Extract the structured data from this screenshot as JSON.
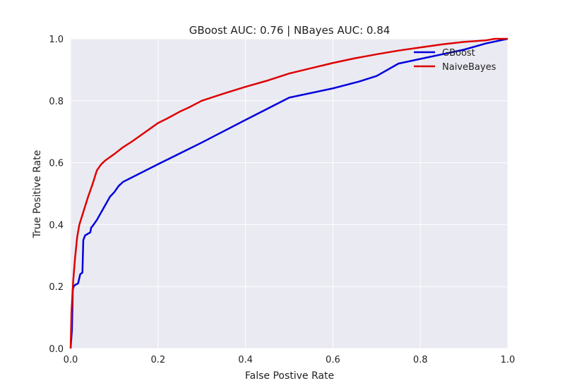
{
  "chart_data": {
    "type": "line",
    "title": "GBoost AUC: 0.76 | NBayes AUC: 0.84",
    "xlabel": "False Postive Rate",
    "ylabel": "True Positive Rate",
    "xlim": [
      0.0,
      1.0
    ],
    "ylim": [
      0.0,
      1.0
    ],
    "xticks": [
      "0.0",
      "0.2",
      "0.4",
      "0.6",
      "0.8",
      "1.0"
    ],
    "yticks": [
      "0.0",
      "0.2",
      "0.4",
      "0.6",
      "0.8",
      "1.0"
    ],
    "grid": true,
    "background": "#eaeaf2",
    "legend_position": "top-right",
    "series": [
      {
        "name": "GBoost",
        "color": "#0000dd",
        "x": [
          0.0,
          0.003,
          0.005,
          0.007,
          0.01,
          0.017,
          0.022,
          0.027,
          0.029,
          0.033,
          0.045,
          0.047,
          0.05,
          0.06,
          0.07,
          0.08,
          0.09,
          0.1,
          0.11,
          0.12,
          0.2,
          0.3,
          0.4,
          0.5,
          0.6,
          0.66,
          0.7,
          0.75,
          0.8,
          0.9,
          0.95,
          1.0
        ],
        "y": [
          0.0,
          0.06,
          0.19,
          0.2,
          0.205,
          0.21,
          0.24,
          0.245,
          0.35,
          0.365,
          0.375,
          0.39,
          0.395,
          0.415,
          0.44,
          0.465,
          0.49,
          0.505,
          0.525,
          0.538,
          0.595,
          0.665,
          0.738,
          0.81,
          0.84,
          0.862,
          0.88,
          0.92,
          0.935,
          0.965,
          0.985,
          1.0
        ]
      },
      {
        "name": "NaiveBayes",
        "color": "#dd0000",
        "x": [
          0.0,
          0.002,
          0.004,
          0.006,
          0.01,
          0.015,
          0.02,
          0.03,
          0.04,
          0.05,
          0.06,
          0.07,
          0.08,
          0.1,
          0.12,
          0.14,
          0.16,
          0.18,
          0.2,
          0.22,
          0.25,
          0.27,
          0.3,
          0.35,
          0.4,
          0.45,
          0.5,
          0.55,
          0.6,
          0.65,
          0.7,
          0.75,
          0.8,
          0.85,
          0.9,
          0.95,
          0.97,
          1.0
        ],
        "y": [
          0.0,
          0.12,
          0.17,
          0.22,
          0.29,
          0.36,
          0.4,
          0.445,
          0.49,
          0.53,
          0.575,
          0.595,
          0.608,
          0.628,
          0.65,
          0.668,
          0.688,
          0.708,
          0.728,
          0.742,
          0.765,
          0.778,
          0.8,
          0.823,
          0.845,
          0.865,
          0.888,
          0.905,
          0.922,
          0.937,
          0.95,
          0.962,
          0.972,
          0.982,
          0.99,
          0.995,
          1.0,
          1.0
        ]
      }
    ]
  }
}
